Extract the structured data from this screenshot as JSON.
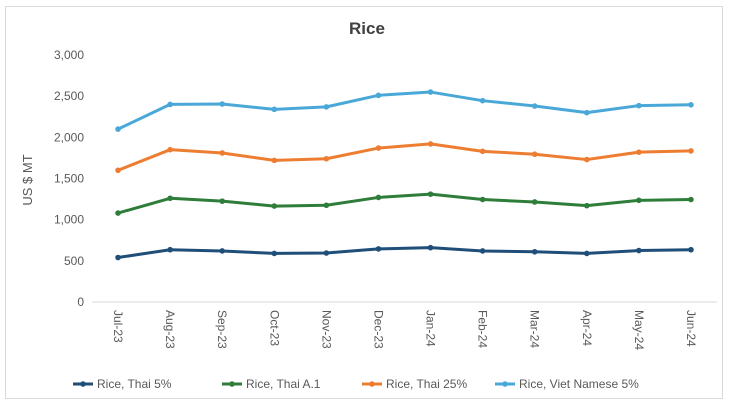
{
  "chart_data": {
    "type": "line",
    "title": "Rice",
    "xlabel": "",
    "ylabel": "US $ MT",
    "ylim": [
      0,
      3000
    ],
    "yticks": [
      "0",
      "500",
      "1,000",
      "1,500",
      "2,000",
      "2,500",
      "3,000"
    ],
    "ytick_values": [
      0,
      500,
      1000,
      1500,
      2000,
      2500,
      3000
    ],
    "categories": [
      "Jul-23",
      "Aug-23",
      "Sep-23",
      "Oct-23",
      "Nov-23",
      "Dec-23",
      "Jan-24",
      "Feb-24",
      "Mar-24",
      "Apr-24",
      "May-24",
      "Jun-24"
    ],
    "grid": false,
    "legend_position": "bottom",
    "series": [
      {
        "name": "Rice, Thai 5%",
        "color": "#1f4e79",
        "values": [
          540,
          635,
          620,
          590,
          595,
          645,
          660,
          620,
          610,
          590,
          625,
          635
        ]
      },
      {
        "name": "Rice, Thai A.1",
        "color": "#2e7d3a",
        "values": [
          1080,
          1260,
          1225,
          1165,
          1175,
          1270,
          1310,
          1245,
          1215,
          1170,
          1235,
          1245
        ]
      },
      {
        "name": "Rice, Thai 25%",
        "color": "#ed7d31",
        "values": [
          1600,
          1850,
          1810,
          1720,
          1740,
          1870,
          1920,
          1830,
          1795,
          1730,
          1820,
          1835
        ]
      },
      {
        "name": "Rice, Viet Namese 5%",
        "color": "#4aa8d8",
        "values": [
          2100,
          2400,
          2405,
          2340,
          2370,
          2510,
          2550,
          2445,
          2380,
          2300,
          2385,
          2395
        ]
      }
    ]
  }
}
